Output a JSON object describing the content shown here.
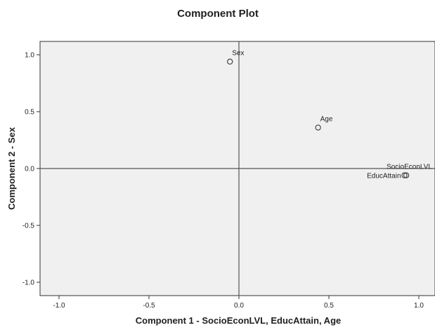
{
  "chart_data": {
    "type": "scatter",
    "title": "Component Plot",
    "xlabel": "Component 1 - SocioEconLVL, EducAttain, Age",
    "ylabel": "Component 2 - Sex",
    "xlim": [
      -1.1,
      1.1
    ],
    "ylim": [
      -1.1,
      1.1
    ],
    "xticks": [
      "-1.0",
      "-0.5",
      "0.0",
      "0.5",
      "1.0"
    ],
    "yticks": [
      "1.0",
      "0.5",
      "0.0",
      "-0.5",
      "-1.0"
    ],
    "grid": false,
    "points": [
      {
        "label": "Sex",
        "x": -0.05,
        "y": 0.94
      },
      {
        "label": "Age",
        "x": 0.44,
        "y": 0.36
      },
      {
        "label": "SocioEconLVL",
        "x": 0.93,
        "y": -0.06
      },
      {
        "label": "EducAttain",
        "x": 0.92,
        "y": -0.06
      }
    ],
    "colors": {
      "plot_background": "#f0f0f0",
      "frame": "#333333",
      "reference_lines": "#555555",
      "marker": "#444444"
    }
  }
}
